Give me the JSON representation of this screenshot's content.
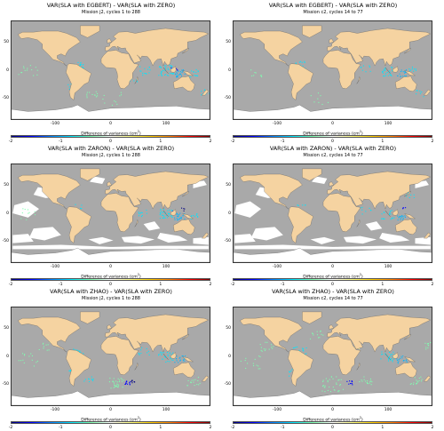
{
  "figure": {
    "panels": [
      {
        "title": "VAR(SLA with EGBERT) - VAR(SLA with ZERO)",
        "subtitle": "Mission j2, cycles 1 to 288",
        "gaps": "none",
        "spots": "egbert_j2"
      },
      {
        "title": "VAR(SLA with EGBERT) - VAR(SLA with ZERO)",
        "subtitle": "Mission c2, cycles 14 to 77",
        "gaps": "none",
        "spots": "egbert_c2"
      },
      {
        "title": "VAR(SLA with ZARON) - VAR(SLA with ZERO)",
        "subtitle": "Mission j2, cycles 1 to 288",
        "gaps": "zaron",
        "spots": "zaron_j2"
      },
      {
        "title": "VAR(SLA with ZARON) - VAR(SLA with ZERO)",
        "subtitle": "Mission c2, cycles 14 to 77",
        "gaps": "zaron",
        "spots": "zaron_c2"
      },
      {
        "title": "VAR(SLA with ZHAO) - VAR(SLA with ZERO)",
        "subtitle": "Mission j2, cycles 1 to 288",
        "gaps": "none",
        "spots": "zhao_j2"
      },
      {
        "title": "VAR(SLA with ZHAO) - VAR(SLA with ZERO)",
        "subtitle": "Mission c2, cycles 14 to 77",
        "gaps": "none",
        "spots": "zhao_c2"
      }
    ],
    "x_ticks": [
      "-100",
      "0",
      "100"
    ],
    "y_ticks": [
      "50",
      "0",
      "-50"
    ],
    "colorbar": {
      "label": "Difference of variances (cm",
      "label_sup": "2",
      "label_end": ")",
      "ticks": [
        "-2",
        "-1",
        "0",
        "1",
        "2"
      ],
      "range": [
        -2,
        2
      ]
    },
    "colors": {
      "ocean": "#a9a9a9",
      "land": "#f5d3a1",
      "coast": "#555555",
      "no_data": "#ffffff"
    }
  }
}
